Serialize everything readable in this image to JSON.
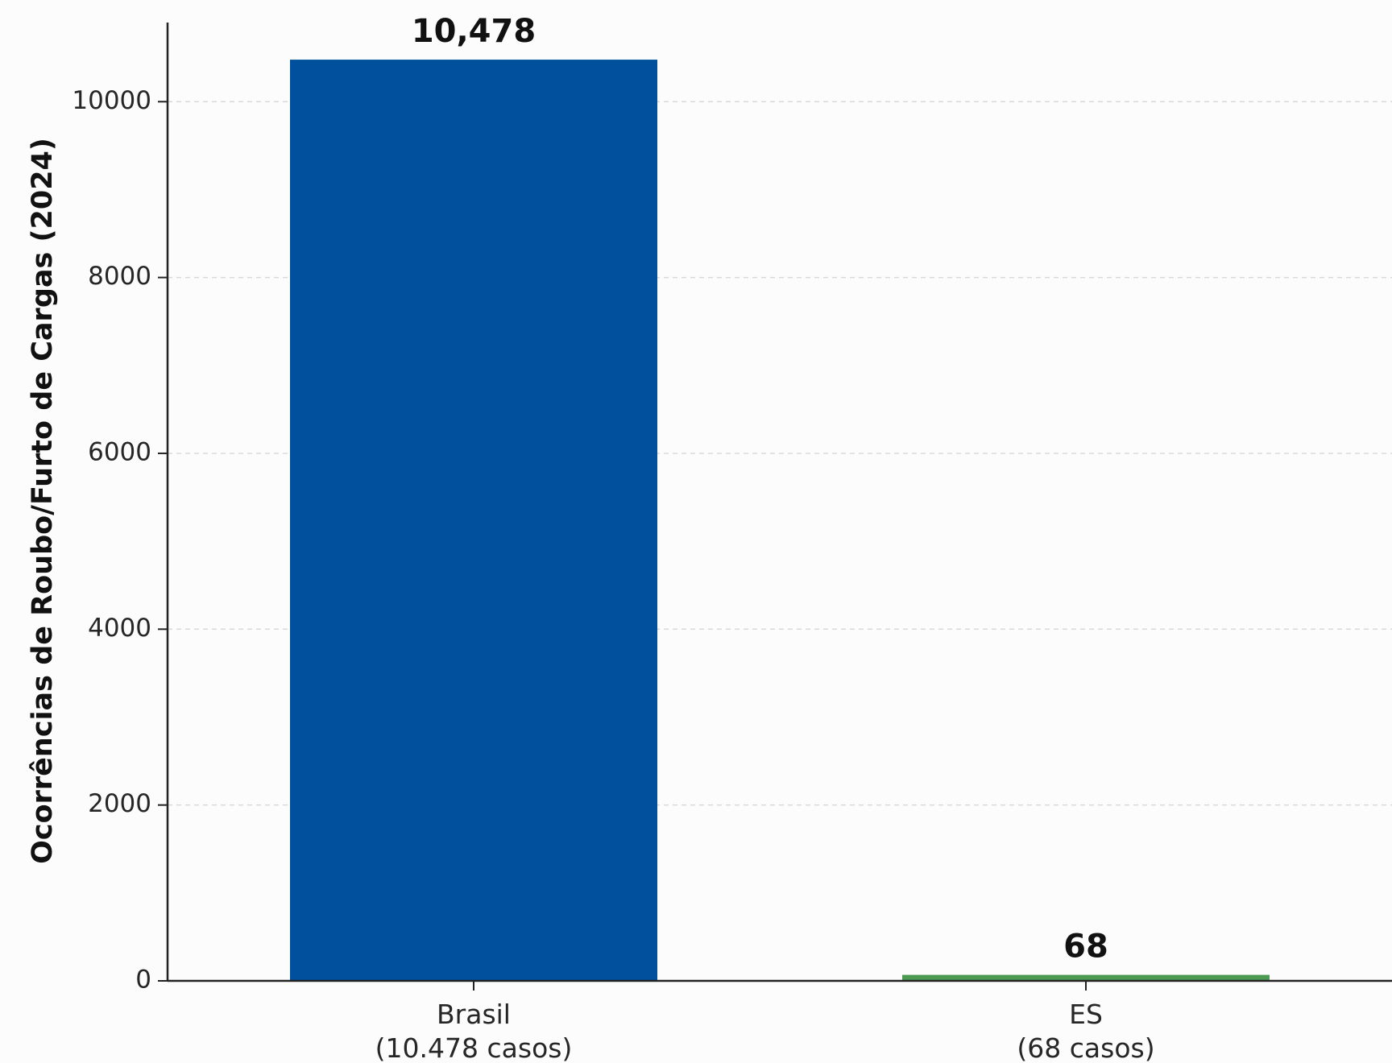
{
  "chart_data": {
    "type": "bar",
    "title": "",
    "xlabel": "",
    "ylabel": "Ocorrências de Roubo/Furto de Cargas (2024)",
    "ylim": [
      0,
      10900
    ],
    "yticks": [
      0,
      2000,
      4000,
      6000,
      8000,
      10000
    ],
    "grid": "y-dashed",
    "categories": [
      {
        "line1": "Brasil",
        "line2": "(10.478 casos)"
      },
      {
        "line1": "ES",
        "line2": "(68 casos)"
      }
    ],
    "values": [
      10478,
      68
    ],
    "value_labels": [
      "10,478",
      "68"
    ],
    "colors": [
      "#00509e",
      "#4c9a52"
    ]
  }
}
